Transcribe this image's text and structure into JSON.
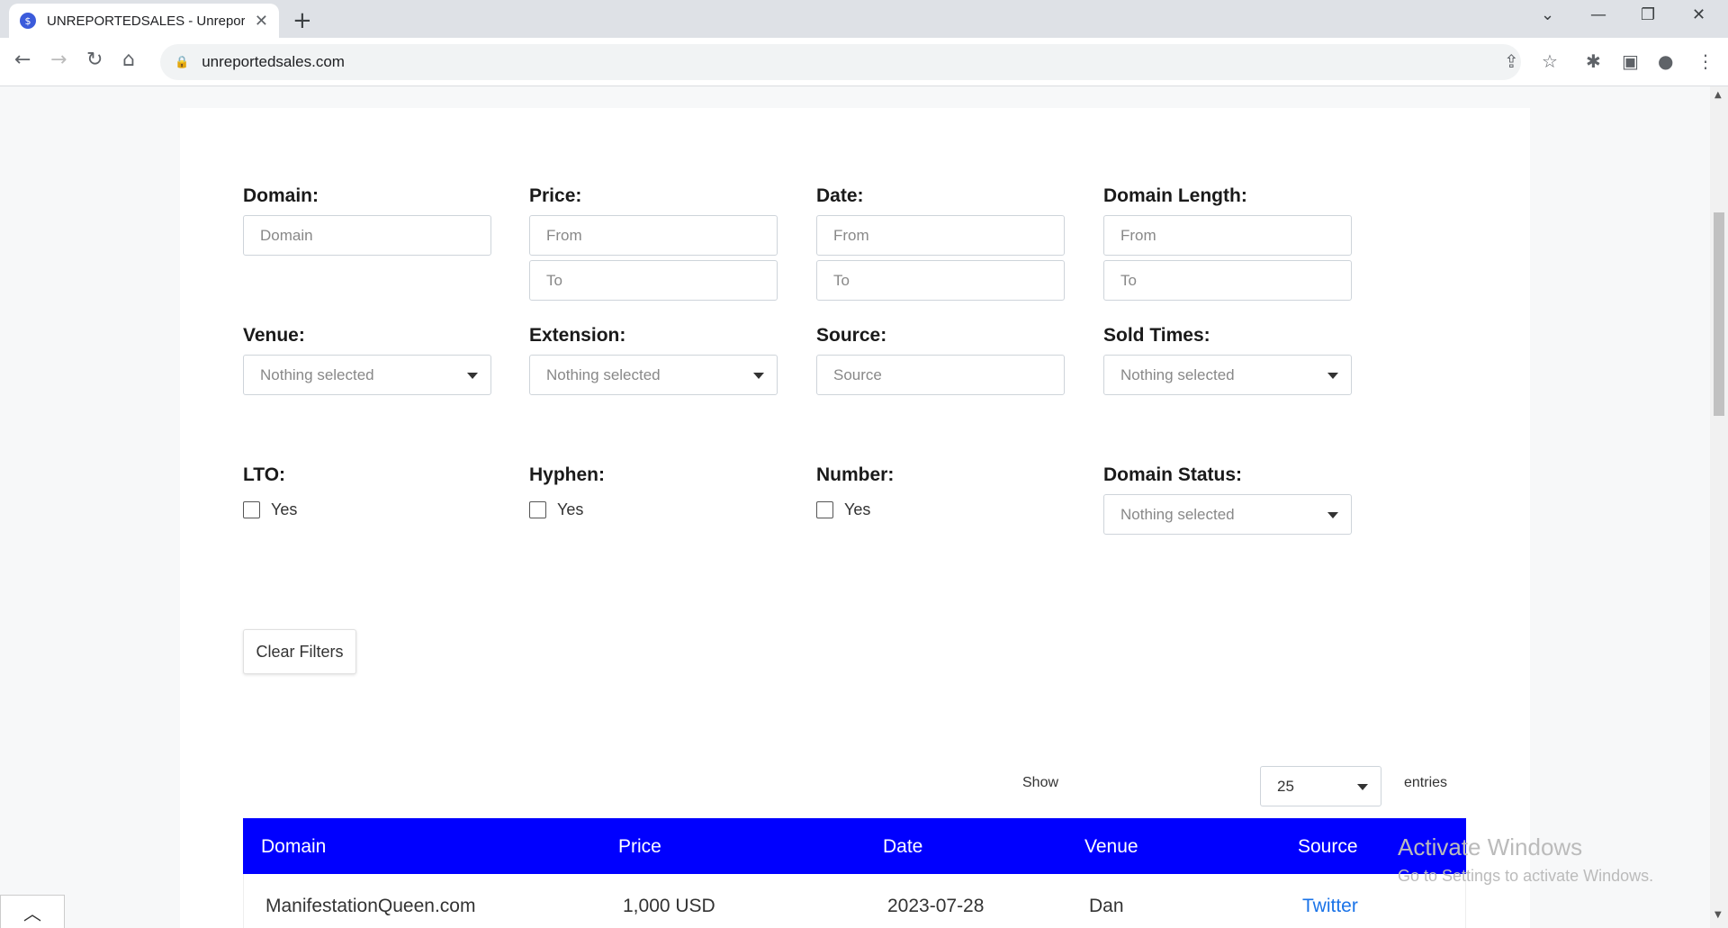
{
  "browser": {
    "tab_title": "UNREPORTEDSALES - Unreported",
    "favicon_glyph": "$",
    "url": "unreportedsales.com",
    "icons": [
      "back-icon",
      "forward-icon",
      "reload-icon",
      "home-icon",
      "lock-icon",
      "share-icon",
      "star-icon",
      "extensions-icon",
      "sidepanel-icon",
      "profile-icon",
      "menu-icon"
    ]
  },
  "filters": {
    "domain": {
      "label": "Domain:",
      "placeholder": "Domain"
    },
    "price": {
      "label": "Price:",
      "from": "From",
      "to": "To"
    },
    "date": {
      "label": "Date:",
      "from": "From",
      "to": "To"
    },
    "domain_length": {
      "label": "Domain Length:",
      "from": "From",
      "to": "To"
    },
    "venue": {
      "label": "Venue:",
      "value": "Nothing selected"
    },
    "extension": {
      "label": "Extension:",
      "value": "Nothing selected"
    },
    "source": {
      "label": "Source:",
      "placeholder": "Source"
    },
    "sold_times": {
      "label": "Sold Times:",
      "value": "Nothing selected"
    },
    "lto": {
      "label": "LTO:",
      "option": "Yes"
    },
    "hyphen": {
      "label": "Hyphen:",
      "option": "Yes"
    },
    "number": {
      "label": "Number:",
      "option": "Yes"
    },
    "domain_status": {
      "label": "Domain Status:",
      "value": "Nothing selected"
    },
    "clear_label": "Clear Filters"
  },
  "table": {
    "show_label": "Show",
    "entries_value": "25",
    "entries_label": "entries",
    "header_color": "#0000ff",
    "columns": [
      "Domain",
      "Price",
      "Date",
      "Venue",
      "Source"
    ],
    "rows": [
      {
        "domain": "ManifestationQueen.com",
        "price": "1,000 USD",
        "date": "2023-07-28",
        "venue": "Dan",
        "source": "Twitter"
      }
    ]
  },
  "watermark": {
    "line1": "Activate Windows",
    "line2": "Go to Settings to activate Windows."
  }
}
